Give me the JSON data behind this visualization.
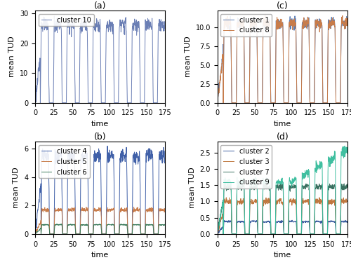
{
  "title_a": "(a)",
  "title_b": "(b)",
  "title_c": "(c)",
  "title_d": "(d)",
  "xlabel": "time",
  "ylabel": "mean TUD",
  "xticks": [
    0,
    25,
    50,
    75,
    100,
    125,
    150,
    175
  ],
  "colors": {
    "cluster10": "#6b7fb5",
    "cluster1": "#5a7db5",
    "cluster8": "#c87c4a",
    "cluster4": "#4060a8",
    "cluster5": "#c87c4a",
    "cluster6": "#3a7a5a",
    "cluster2": "#3d5fa0",
    "cluster3": "#c07840",
    "cluster7": "#3a7060",
    "cluster9": "#40bfa0"
  },
  "legend_fontsize": 7,
  "tick_fontsize": 7,
  "label_fontsize": 8,
  "title_fontsize": 9
}
